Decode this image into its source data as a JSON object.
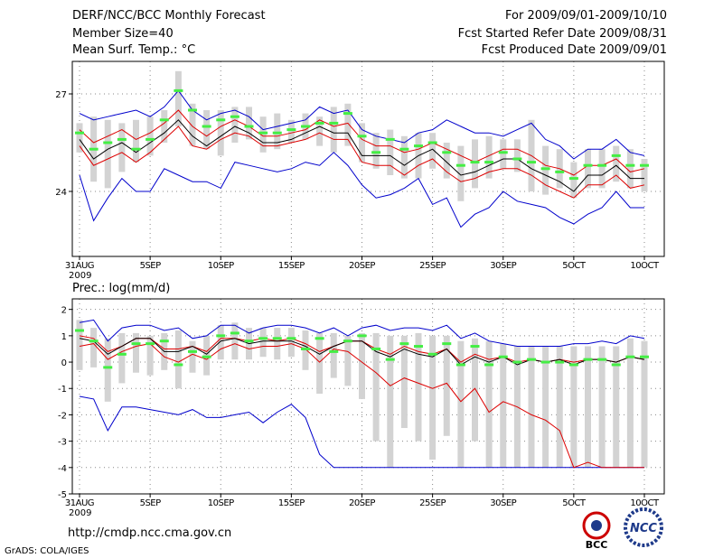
{
  "header": {
    "title": "DERF/NCC/BCC Monthly Forecast",
    "member_size": "Member Size=40",
    "variable1": "Mean Surf. Temp.: °C",
    "forecast_period": "For 2009/09/01-2009/10/10",
    "started_refer": "Fcst Started Refer Date 2009/08/31",
    "produced": "Fcst Produced Date 2009/09/01"
  },
  "footer": {
    "url": "http://cmdp.ncc.cma.gov.cn",
    "grads": "GrADS: COLA/IGES",
    "logo_bcc": "BCC",
    "logo_ncc": "NCC"
  },
  "colors": {
    "max_min": "#0000cc",
    "p25_p75": "#dd0000",
    "mean": "#000000",
    "box": "#d3d3d3",
    "median": "#44ee44"
  },
  "chart_data": [
    {
      "type": "box-line",
      "title": "Mean Surf. Temp.: °C",
      "ylim": [
        22,
        28
      ],
      "yticks": [
        24,
        27
      ],
      "ytick_labels": [
        "24",
        "27"
      ],
      "xtick_index": [
        0,
        5,
        10,
        15,
        20,
        25,
        30,
        35,
        40
      ],
      "xtick_labels": [
        "31AUG",
        "5SEP",
        "10SEP",
        "15SEP",
        "20SEP",
        "25SEP",
        "30SEP",
        "5OCT",
        "10OCT"
      ],
      "year_label": "2009",
      "series": [
        {
          "name": "max",
          "values": [
            26.4,
            26.2,
            26.3,
            26.4,
            26.5,
            26.3,
            26.6,
            27.1,
            26.5,
            26.2,
            26.4,
            26.5,
            26.3,
            25.9,
            26.0,
            26.1,
            26.2,
            26.6,
            26.4,
            26.5,
            25.9,
            25.7,
            25.6,
            25.5,
            25.8,
            25.9,
            26.2,
            26.0,
            25.8,
            25.8,
            25.7,
            25.9,
            26.1,
            25.6,
            25.4,
            25.0,
            25.3,
            25.3,
            25.6,
            25.2,
            25.1
          ]
        },
        {
          "name": "p75",
          "values": [
            25.9,
            25.5,
            25.7,
            25.9,
            25.6,
            25.8,
            26.1,
            26.5,
            26.0,
            25.7,
            26.0,
            26.2,
            26.0,
            25.7,
            25.7,
            25.8,
            25.9,
            26.2,
            26.0,
            26.1,
            25.6,
            25.4,
            25.4,
            25.2,
            25.3,
            25.5,
            25.3,
            25.1,
            24.9,
            25.1,
            25.3,
            25.3,
            25.1,
            24.8,
            24.7,
            24.5,
            24.8,
            24.8,
            25.0,
            24.6,
            24.7
          ]
        },
        {
          "name": "mean",
          "values": [
            25.6,
            25.0,
            25.3,
            25.5,
            25.2,
            25.5,
            25.8,
            26.2,
            25.7,
            25.4,
            25.7,
            26.0,
            25.8,
            25.5,
            25.5,
            25.6,
            25.8,
            26.0,
            25.8,
            25.8,
            25.1,
            25.1,
            25.1,
            24.8,
            25.1,
            25.3,
            24.9,
            24.5,
            24.6,
            24.8,
            25.0,
            25.0,
            24.7,
            24.5,
            24.3,
            24.0,
            24.5,
            24.5,
            24.8,
            24.4,
            24.4
          ]
        },
        {
          "name": "p25",
          "values": [
            25.4,
            24.8,
            25.0,
            25.2,
            24.9,
            25.2,
            25.6,
            26.0,
            25.4,
            25.3,
            25.6,
            25.8,
            25.7,
            25.4,
            25.4,
            25.5,
            25.6,
            25.8,
            25.6,
            25.6,
            24.9,
            24.8,
            24.8,
            24.5,
            24.8,
            25.0,
            24.6,
            24.3,
            24.4,
            24.6,
            24.7,
            24.7,
            24.5,
            24.2,
            24.0,
            23.8,
            24.2,
            24.2,
            24.5,
            24.1,
            24.2
          ]
        },
        {
          "name": "min",
          "values": [
            24.5,
            23.1,
            23.8,
            24.4,
            24.0,
            24.0,
            24.7,
            24.5,
            24.3,
            24.3,
            24.1,
            24.9,
            24.8,
            24.7,
            24.6,
            24.7,
            24.9,
            24.8,
            25.2,
            24.8,
            24.2,
            23.8,
            23.9,
            24.1,
            24.4,
            23.6,
            23.8,
            22.9,
            23.3,
            23.5,
            24.0,
            23.7,
            23.6,
            23.5,
            23.2,
            23.0,
            23.3,
            23.5,
            24.0,
            23.5,
            23.5
          ]
        },
        {
          "name": "median",
          "values": [
            25.8,
            25.3,
            25.5,
            25.6,
            25.3,
            25.6,
            26.2,
            27.1,
            26.5,
            26.0,
            26.2,
            26.3,
            26.0,
            25.8,
            25.8,
            25.9,
            26.0,
            26.1,
            26.1,
            26.4,
            25.7,
            25.2,
            25.6,
            25.3,
            25.4,
            25.5,
            25.2,
            24.8,
            24.9,
            24.9,
            25.2,
            25.0,
            24.9,
            24.7,
            24.6,
            24.4,
            24.8,
            24.8,
            25.1,
            24.8,
            24.8
          ]
        },
        {
          "name": "box_hi",
          "values": [
            26.1,
            26.3,
            26.2,
            26.1,
            26.2,
            26.3,
            26.5,
            27.7,
            26.7,
            26.5,
            26.5,
            26.6,
            26.6,
            26.3,
            26.4,
            26.2,
            26.4,
            26.3,
            26.6,
            26.7,
            26.1,
            25.8,
            25.9,
            25.7,
            25.8,
            25.8,
            25.5,
            25.4,
            25.6,
            25.7,
            25.6,
            25.6,
            26.2,
            25.4,
            25.3,
            24.9,
            25.3,
            25.3,
            25.4,
            25.3,
            25.0
          ]
        },
        {
          "name": "box_lo",
          "values": [
            25.2,
            24.3,
            24.1,
            24.6,
            24.9,
            25.1,
            25.5,
            26.0,
            25.4,
            25.3,
            25.1,
            25.5,
            25.6,
            25.2,
            25.3,
            25.5,
            25.6,
            25.4,
            25.2,
            25.4,
            24.9,
            24.7,
            24.5,
            24.4,
            24.4,
            24.7,
            24.4,
            23.7,
            24.1,
            24.4,
            24.7,
            24.6,
            24.0,
            23.9,
            24.1,
            23.8,
            24.1,
            24.1,
            24.3,
            24.1,
            24.0
          ]
        }
      ]
    },
    {
      "type": "box-line",
      "title": "Prec.: log(mm/d)",
      "ylim": [
        -5,
        2.4
      ],
      "yticks": [
        2,
        1,
        0,
        -1,
        -2,
        -3,
        -4,
        -5
      ],
      "ytick_labels": [
        "2",
        "1",
        "0",
        "-1",
        "-2",
        "-3",
        "-4",
        "-5"
      ],
      "xtick_index": [
        0,
        5,
        10,
        15,
        20,
        25,
        30,
        35,
        40
      ],
      "xtick_labels": [
        "31AUG",
        "5SEP",
        "10SEP",
        "15SEP",
        "20SEP",
        "25SEP",
        "30SEP",
        "5OCT",
        "10OCT"
      ],
      "year_label": "2009",
      "series": [
        {
          "name": "max",
          "values": [
            1.5,
            1.6,
            0.8,
            1.3,
            1.4,
            1.4,
            1.2,
            1.3,
            0.9,
            1.0,
            1.4,
            1.4,
            1.1,
            1.3,
            1.4,
            1.4,
            1.3,
            1.1,
            1.3,
            1.0,
            1.3,
            1.4,
            1.2,
            1.3,
            1.3,
            1.2,
            1.4,
            0.9,
            1.1,
            0.8,
            0.7,
            0.6,
            0.6,
            0.6,
            0.6,
            0.7,
            0.7,
            0.8,
            0.7,
            1.0,
            0.9
          ]
        },
        {
          "name": "p75",
          "values": [
            1.0,
            0.9,
            0.4,
            0.6,
            0.9,
            0.9,
            0.5,
            0.5,
            0.6,
            0.4,
            0.9,
            0.9,
            0.8,
            0.9,
            0.8,
            0.9,
            0.7,
            0.4,
            0.6,
            0.8,
            0.8,
            0.5,
            0.3,
            0.6,
            0.4,
            0.3,
            0.5,
            0.0,
            0.3,
            0.1,
            0.2,
            0.0,
            0.1,
            0.0,
            0.1,
            0.0,
            0.1,
            0.1,
            0.0,
            0.2,
            0.1
          ]
        },
        {
          "name": "mean",
          "values": [
            0.9,
            0.8,
            0.3,
            0.6,
            0.9,
            0.9,
            0.4,
            0.4,
            0.6,
            0.3,
            0.8,
            0.9,
            0.7,
            0.8,
            0.8,
            0.8,
            0.6,
            0.3,
            0.6,
            0.8,
            0.8,
            0.4,
            0.2,
            0.5,
            0.3,
            0.2,
            0.5,
            -0.1,
            0.2,
            0.0,
            0.2,
            -0.1,
            0.1,
            0.0,
            0.1,
            -0.1,
            0.1,
            0.1,
            0.0,
            0.2,
            0.1
          ]
        },
        {
          "name": "p25",
          "values": [
            0.6,
            0.7,
            0.1,
            0.4,
            0.6,
            0.7,
            0.2,
            0.0,
            0.3,
            0.1,
            0.5,
            0.7,
            0.5,
            0.6,
            0.6,
            0.7,
            0.5,
            0.0,
            0.5,
            0.4,
            0.0,
            -0.4,
            -0.9,
            -0.6,
            -0.8,
            -1.0,
            -0.8,
            -1.5,
            -1.0,
            -1.9,
            -1.5,
            -1.7,
            -2.0,
            -2.2,
            -2.6,
            -4.0,
            -3.8,
            -4.0,
            -4.0,
            -4.0,
            -4.0
          ]
        },
        {
          "name": "min",
          "values": [
            -1.3,
            -1.4,
            -2.6,
            -1.7,
            -1.7,
            -1.8,
            -1.9,
            -2.0,
            -1.8,
            -2.1,
            -2.1,
            -2.0,
            -1.9,
            -2.3,
            -1.9,
            -1.6,
            -2.1,
            -3.5,
            -4.0,
            -4.0,
            -4.0,
            -4.0,
            -4.0,
            -4.0,
            -4.0,
            -4.0,
            -4.0,
            -4.0,
            -4.0,
            -4.0,
            -4.0,
            -4.0,
            -4.0,
            -4.0,
            -4.0,
            -4.0,
            -4.0,
            -4.0,
            -4.0,
            -4.0,
            -4.0
          ]
        },
        {
          "name": "median",
          "values": [
            1.2,
            0.8,
            -0.2,
            0.3,
            0.7,
            0.7,
            0.8,
            -0.1,
            0.4,
            0.2,
            1.0,
            1.1,
            0.8,
            0.9,
            0.9,
            0.9,
            0.5,
            0.9,
            0.4,
            0.8,
            1.0,
            0.5,
            0.1,
            0.7,
            0.6,
            0.3,
            0.7,
            -0.1,
            0.6,
            -0.1,
            0.2,
            0.0,
            0.1,
            0.0,
            0.0,
            -0.1,
            0.1,
            0.1,
            -0.1,
            0.2,
            0.2
          ]
        },
        {
          "name": "box_hi",
          "values": [
            1.6,
            1.3,
            0.9,
            1.1,
            1.1,
            1.0,
            1.1,
            1.2,
            0.8,
            1.0,
            1.4,
            1.5,
            1.3,
            1.3,
            1.3,
            1.3,
            1.2,
            1.1,
            1.1,
            1.0,
            1.1,
            1.1,
            1.0,
            1.0,
            1.1,
            1.0,
            1.0,
            0.8,
            0.9,
            0.8,
            0.7,
            0.6,
            0.6,
            0.6,
            0.6,
            0.6,
            0.6,
            0.6,
            0.6,
            0.9,
            0.8
          ]
        },
        {
          "name": "box_lo",
          "values": [
            -0.3,
            -0.2,
            -1.5,
            -0.8,
            -0.4,
            -0.5,
            -0.3,
            -1.0,
            -0.4,
            -0.5,
            0.1,
            0.1,
            0.1,
            0.2,
            0.1,
            0.2,
            -0.3,
            -1.2,
            -0.6,
            -0.9,
            -1.4,
            -3.0,
            -4.0,
            -2.5,
            -3.0,
            -3.7,
            -2.8,
            -4.0,
            -3.0,
            -4.0,
            -4.0,
            -4.0,
            -4.0,
            -4.0,
            -4.0,
            -4.0,
            -4.0,
            -4.0,
            -4.0,
            -4.0,
            -4.0
          ]
        }
      ]
    }
  ]
}
